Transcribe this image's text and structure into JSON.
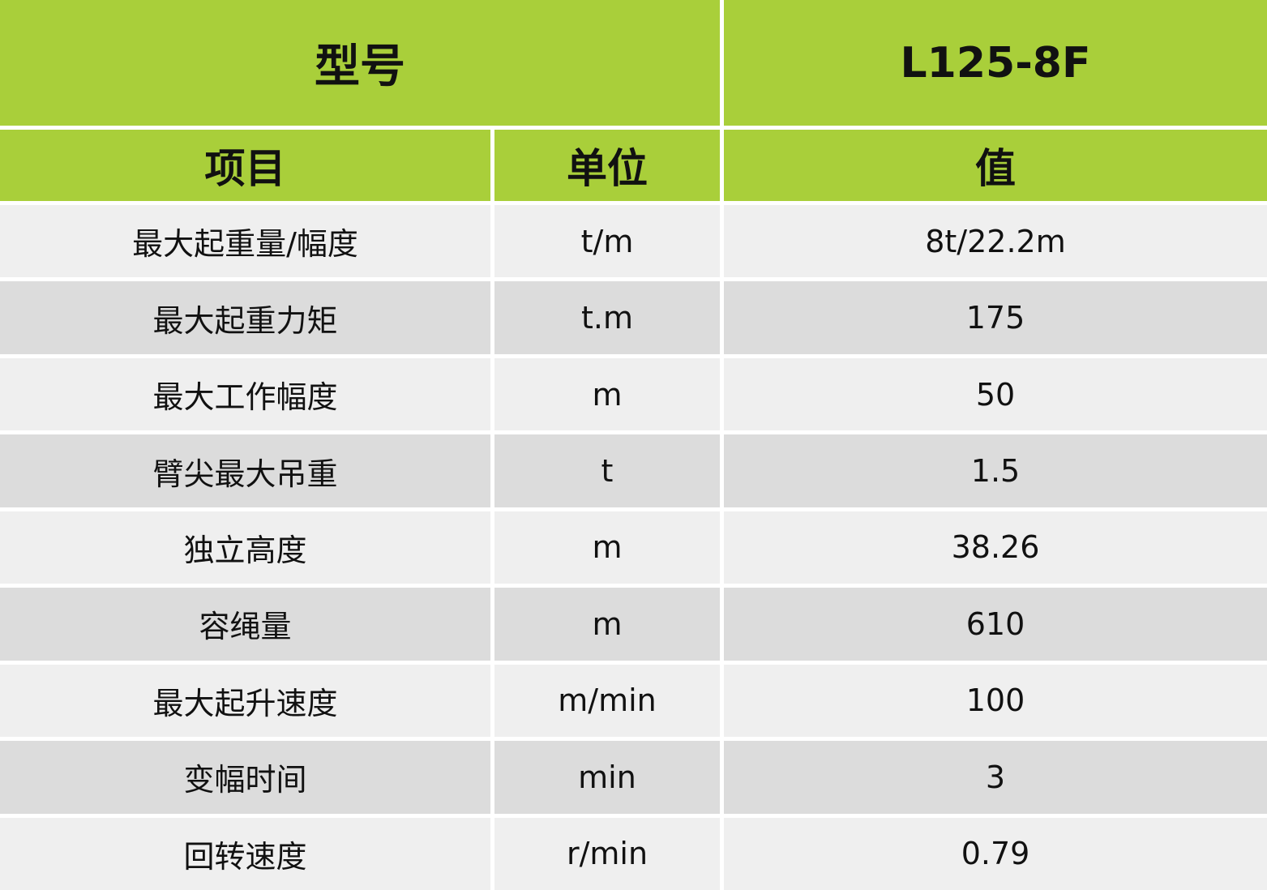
{
  "header": {
    "model_label": "型号",
    "model_value": "L125-8F"
  },
  "columns": [
    "项目",
    "单位",
    "值"
  ],
  "rows": [
    {
      "item": "最大起重量/幅度",
      "unit": "t/m",
      "value": "8t/22.2m"
    },
    {
      "item": "最大起重力矩",
      "unit": "t.m",
      "value": "175"
    },
    {
      "item": "最大工作幅度",
      "unit": "m",
      "value": "50"
    },
    {
      "item": "臂尖最大吊重",
      "unit": "t",
      "value": "1.5"
    },
    {
      "item": "独立高度",
      "unit": "m",
      "value": "38.26"
    },
    {
      "item": "容绳量",
      "unit": "m",
      "value": "610"
    },
    {
      "item": "最大起升速度",
      "unit": "m/min",
      "value": "100"
    },
    {
      "item": "变幅时间",
      "unit": "min",
      "value": "3"
    },
    {
      "item": "回转速度",
      "unit": "r/min",
      "value": "0.79"
    }
  ],
  "colors": {
    "header": "#a9cf3a",
    "row_light": "#efefef",
    "row_dark": "#dcdcdc"
  }
}
